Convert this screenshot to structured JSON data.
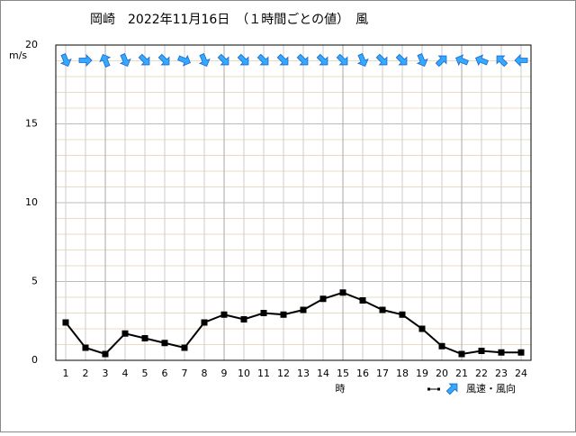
{
  "chart_data": {
    "type": "line",
    "title": "岡崎　2022年11月16日　（１時間ごとの値）　風",
    "y_label": "m/s",
    "x_label": "時",
    "categories": [
      "1",
      "2",
      "3",
      "4",
      "5",
      "6",
      "7",
      "8",
      "9",
      "10",
      "11",
      "12",
      "13",
      "14",
      "15",
      "16",
      "17",
      "18",
      "19",
      "20",
      "21",
      "22",
      "23",
      "24"
    ],
    "series": [
      {
        "name": "風速・風向",
        "color": "#000000",
        "arrow_color": "#33aaff",
        "values": [
          2.4,
          0.8,
          0.4,
          1.7,
          1.4,
          1.1,
          0.8,
          2.4,
          2.9,
          2.6,
          3.0,
          2.9,
          3.2,
          3.9,
          4.3,
          3.8,
          3.2,
          2.9,
          2.0,
          0.9,
          0.4,
          0.6,
          0.5,
          0.5
        ],
        "wind_arrow_degrees": [
          157.5,
          90,
          337.5,
          157.5,
          135,
          135,
          112.5,
          157.5,
          135,
          135,
          135,
          135,
          135,
          135,
          135,
          157.5,
          135,
          135,
          157.5,
          45,
          292.5,
          292.5,
          315,
          270
        ]
      }
    ],
    "ylim": [
      0,
      20
    ],
    "yticks": [
      0,
      5,
      10,
      15,
      20
    ],
    "grid": true
  }
}
